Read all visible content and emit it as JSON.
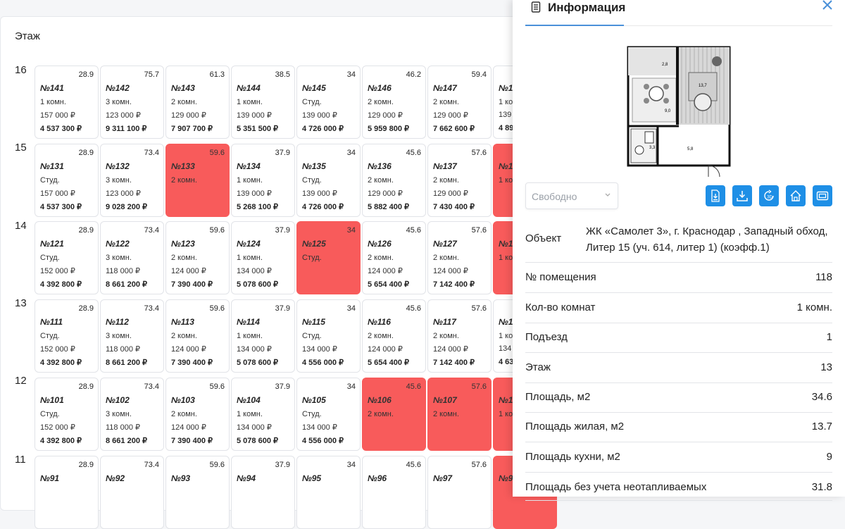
{
  "floor_header": "Этаж",
  "floors": [
    {
      "floor": "16",
      "units": [
        {
          "area": "28.9",
          "num": "№141",
          "rooms": "1 комн.",
          "ppm": "157 000 ₽",
          "price": "4 537 300 ₽",
          "sold": false
        },
        {
          "area": "75.7",
          "num": "№142",
          "rooms": "3 комн.",
          "ppm": "123 000 ₽",
          "price": "9 311 100 ₽",
          "sold": false
        },
        {
          "area": "61.3",
          "num": "№143",
          "rooms": "2 комн.",
          "ppm": "129 000 ₽",
          "price": "7 907 700 ₽",
          "sold": false
        },
        {
          "area": "38.5",
          "num": "№144",
          "rooms": "1 комн.",
          "ppm": "139 000 ₽",
          "price": "5 351 500 ₽",
          "sold": false
        },
        {
          "area": "34",
          "num": "№145",
          "rooms": "Студ.",
          "ppm": "139 000 ₽",
          "price": "4 726 000 ₽",
          "sold": false
        },
        {
          "area": "46.2",
          "num": "№146",
          "rooms": "2 комн.",
          "ppm": "129 000 ₽",
          "price": "5 959 800 ₽",
          "sold": false
        },
        {
          "area": "59.4",
          "num": "№147",
          "rooms": "2 комн.",
          "ppm": "129 000 ₽",
          "price": "7 662 600 ₽",
          "sold": false
        },
        {
          "area": "",
          "num": "№14",
          "rooms": "1 ком",
          "ppm": "139 (",
          "price": "4 89",
          "sold": false
        }
      ]
    },
    {
      "floor": "15",
      "units": [
        {
          "area": "28.9",
          "num": "№131",
          "rooms": "Студ.",
          "ppm": "157 000 ₽",
          "price": "4 537 300 ₽",
          "sold": false
        },
        {
          "area": "73.4",
          "num": "№132",
          "rooms": "3 комн.",
          "ppm": "123 000 ₽",
          "price": "9 028 200 ₽",
          "sold": false
        },
        {
          "area": "59.6",
          "num": "№133",
          "rooms": "2 комн.",
          "ppm": "",
          "price": "",
          "sold": true
        },
        {
          "area": "37.9",
          "num": "№134",
          "rooms": "1 комн.",
          "ppm": "139 000 ₽",
          "price": "5 268 100 ₽",
          "sold": false
        },
        {
          "area": "34",
          "num": "№135",
          "rooms": "Студ.",
          "ppm": "139 000 ₽",
          "price": "4 726 000 ₽",
          "sold": false
        },
        {
          "area": "45.6",
          "num": "№136",
          "rooms": "2 комн.",
          "ppm": "129 000 ₽",
          "price": "5 882 400 ₽",
          "sold": false
        },
        {
          "area": "57.6",
          "num": "№137",
          "rooms": "2 комн.",
          "ppm": "129 000 ₽",
          "price": "7 430 400 ₽",
          "sold": false
        },
        {
          "area": "",
          "num": "№13",
          "rooms": "1 ком",
          "ppm": "",
          "price": "",
          "sold": true
        }
      ]
    },
    {
      "floor": "14",
      "units": [
        {
          "area": "28.9",
          "num": "№121",
          "rooms": "Студ.",
          "ppm": "152 000 ₽",
          "price": "4 392 800 ₽",
          "sold": false
        },
        {
          "area": "73.4",
          "num": "№122",
          "rooms": "3 комн.",
          "ppm": "118 000 ₽",
          "price": "8 661 200 ₽",
          "sold": false
        },
        {
          "area": "59.6",
          "num": "№123",
          "rooms": "2 комн.",
          "ppm": "124 000 ₽",
          "price": "7 390 400 ₽",
          "sold": false
        },
        {
          "area": "37.9",
          "num": "№124",
          "rooms": "1 комн.",
          "ppm": "134 000 ₽",
          "price": "5 078 600 ₽",
          "sold": false
        },
        {
          "area": "34",
          "num": "№125",
          "rooms": "Студ.",
          "ppm": "",
          "price": "",
          "sold": true
        },
        {
          "area": "45.6",
          "num": "№126",
          "rooms": "2 комн.",
          "ppm": "124 000 ₽",
          "price": "5 654 400 ₽",
          "sold": false
        },
        {
          "area": "57.6",
          "num": "№127",
          "rooms": "2 комн.",
          "ppm": "124 000 ₽",
          "price": "7 142 400 ₽",
          "sold": false
        },
        {
          "area": "",
          "num": "№12",
          "rooms": "1 ком",
          "ppm": "",
          "price": "",
          "sold": true
        }
      ]
    },
    {
      "floor": "13",
      "units": [
        {
          "area": "28.9",
          "num": "№111",
          "rooms": "Студ.",
          "ppm": "152 000 ₽",
          "price": "4 392 800 ₽",
          "sold": false
        },
        {
          "area": "73.4",
          "num": "№112",
          "rooms": "3 комн.",
          "ppm": "118 000 ₽",
          "price": "8 661 200 ₽",
          "sold": false
        },
        {
          "area": "59.6",
          "num": "№113",
          "rooms": "2 комн.",
          "ppm": "124 000 ₽",
          "price": "7 390 400 ₽",
          "sold": false
        },
        {
          "area": "37.9",
          "num": "№114",
          "rooms": "1 комн.",
          "ppm": "134 000 ₽",
          "price": "5 078 600 ₽",
          "sold": false
        },
        {
          "area": "34",
          "num": "№115",
          "rooms": "Студ.",
          "ppm": "134 000 ₽",
          "price": "4 556 000 ₽",
          "sold": false
        },
        {
          "area": "45.6",
          "num": "№116",
          "rooms": "2 комн.",
          "ppm": "124 000 ₽",
          "price": "5 654 400 ₽",
          "sold": false
        },
        {
          "area": "57.6",
          "num": "№117",
          "rooms": "2 комн.",
          "ppm": "124 000 ₽",
          "price": "7 142 400 ₽",
          "sold": false
        },
        {
          "area": "",
          "num": "№11",
          "rooms": "1 ком",
          "ppm": "134 (",
          "price": "4 63",
          "sold": false
        }
      ]
    },
    {
      "floor": "12",
      "units": [
        {
          "area": "28.9",
          "num": "№101",
          "rooms": "Студ.",
          "ppm": "152 000 ₽",
          "price": "4 392 800 ₽",
          "sold": false
        },
        {
          "area": "73.4",
          "num": "№102",
          "rooms": "3 комн.",
          "ppm": "118 000 ₽",
          "price": "8 661 200 ₽",
          "sold": false
        },
        {
          "area": "59.6",
          "num": "№103",
          "rooms": "2 комн.",
          "ppm": "124 000 ₽",
          "price": "7 390 400 ₽",
          "sold": false
        },
        {
          "area": "37.9",
          "num": "№104",
          "rooms": "1 комн.",
          "ppm": "134 000 ₽",
          "price": "5 078 600 ₽",
          "sold": false
        },
        {
          "area": "34",
          "num": "№105",
          "rooms": "Студ.",
          "ppm": "134 000 ₽",
          "price": "4 556 000 ₽",
          "sold": false
        },
        {
          "area": "45.6",
          "num": "№106",
          "rooms": "2 комн.",
          "ppm": "",
          "price": "",
          "sold": true
        },
        {
          "area": "57.6",
          "num": "№107",
          "rooms": "2 комн.",
          "ppm": "",
          "price": "",
          "sold": true
        },
        {
          "area": "",
          "num": "№10",
          "rooms": "1 ком",
          "ppm": "",
          "price": "",
          "sold": true
        }
      ]
    },
    {
      "floor": "11",
      "units": [
        {
          "area": "28.9",
          "num": "№91",
          "rooms": "",
          "ppm": "",
          "price": "",
          "sold": false
        },
        {
          "area": "73.4",
          "num": "№92",
          "rooms": "",
          "ppm": "",
          "price": "",
          "sold": false
        },
        {
          "area": "59.6",
          "num": "№93",
          "rooms": "",
          "ppm": "",
          "price": "",
          "sold": false
        },
        {
          "area": "37.9",
          "num": "№94",
          "rooms": "",
          "ppm": "",
          "price": "",
          "sold": false
        },
        {
          "area": "34",
          "num": "№95",
          "rooms": "",
          "ppm": "",
          "price": "",
          "sold": false
        },
        {
          "area": "45.6",
          "num": "№96",
          "rooms": "",
          "ppm": "",
          "price": "",
          "sold": false
        },
        {
          "area": "57.6",
          "num": "№97",
          "rooms": "",
          "ppm": "",
          "price": "",
          "sold": false
        },
        {
          "area": "",
          "num": "№9",
          "rooms": "",
          "ppm": "",
          "price": "",
          "sold": true
        }
      ]
    }
  ],
  "info": {
    "title": "Информация",
    "status_select": "Свободно",
    "actions": [
      "download-pdf-icon",
      "download-icon",
      "rotate-3d-icon",
      "house-icon",
      "panorama-icon"
    ],
    "rows": [
      {
        "key": "Объект",
        "value": "ЖК «Самолет 3», г. Краснодар , Западный обход, Литер 15 (уч. 614, литер 1) (коэфф.1)"
      },
      {
        "key": "№ помещения",
        "value": "118"
      },
      {
        "key": "Кол-во комнат",
        "value": "1 комн."
      },
      {
        "key": "Подъезд",
        "value": "1"
      },
      {
        "key": "Этаж",
        "value": "13"
      },
      {
        "key": "Площадь, м2",
        "value": "34.6"
      },
      {
        "key": "Площадь жилая, м2",
        "value": "13.7"
      },
      {
        "key": "Площадь кухни, м2",
        "value": "9"
      },
      {
        "key": "Площадь без учета неотапливаемых",
        "value": "31.8"
      }
    ],
    "plan_labels": [
      "2,8",
      "13,7",
      "9,0",
      "3,3",
      "5,8"
    ]
  },
  "colors": {
    "sold": "#f85b5b",
    "accent": "#1e8fe6",
    "tab_underline": "#4a90d9"
  }
}
